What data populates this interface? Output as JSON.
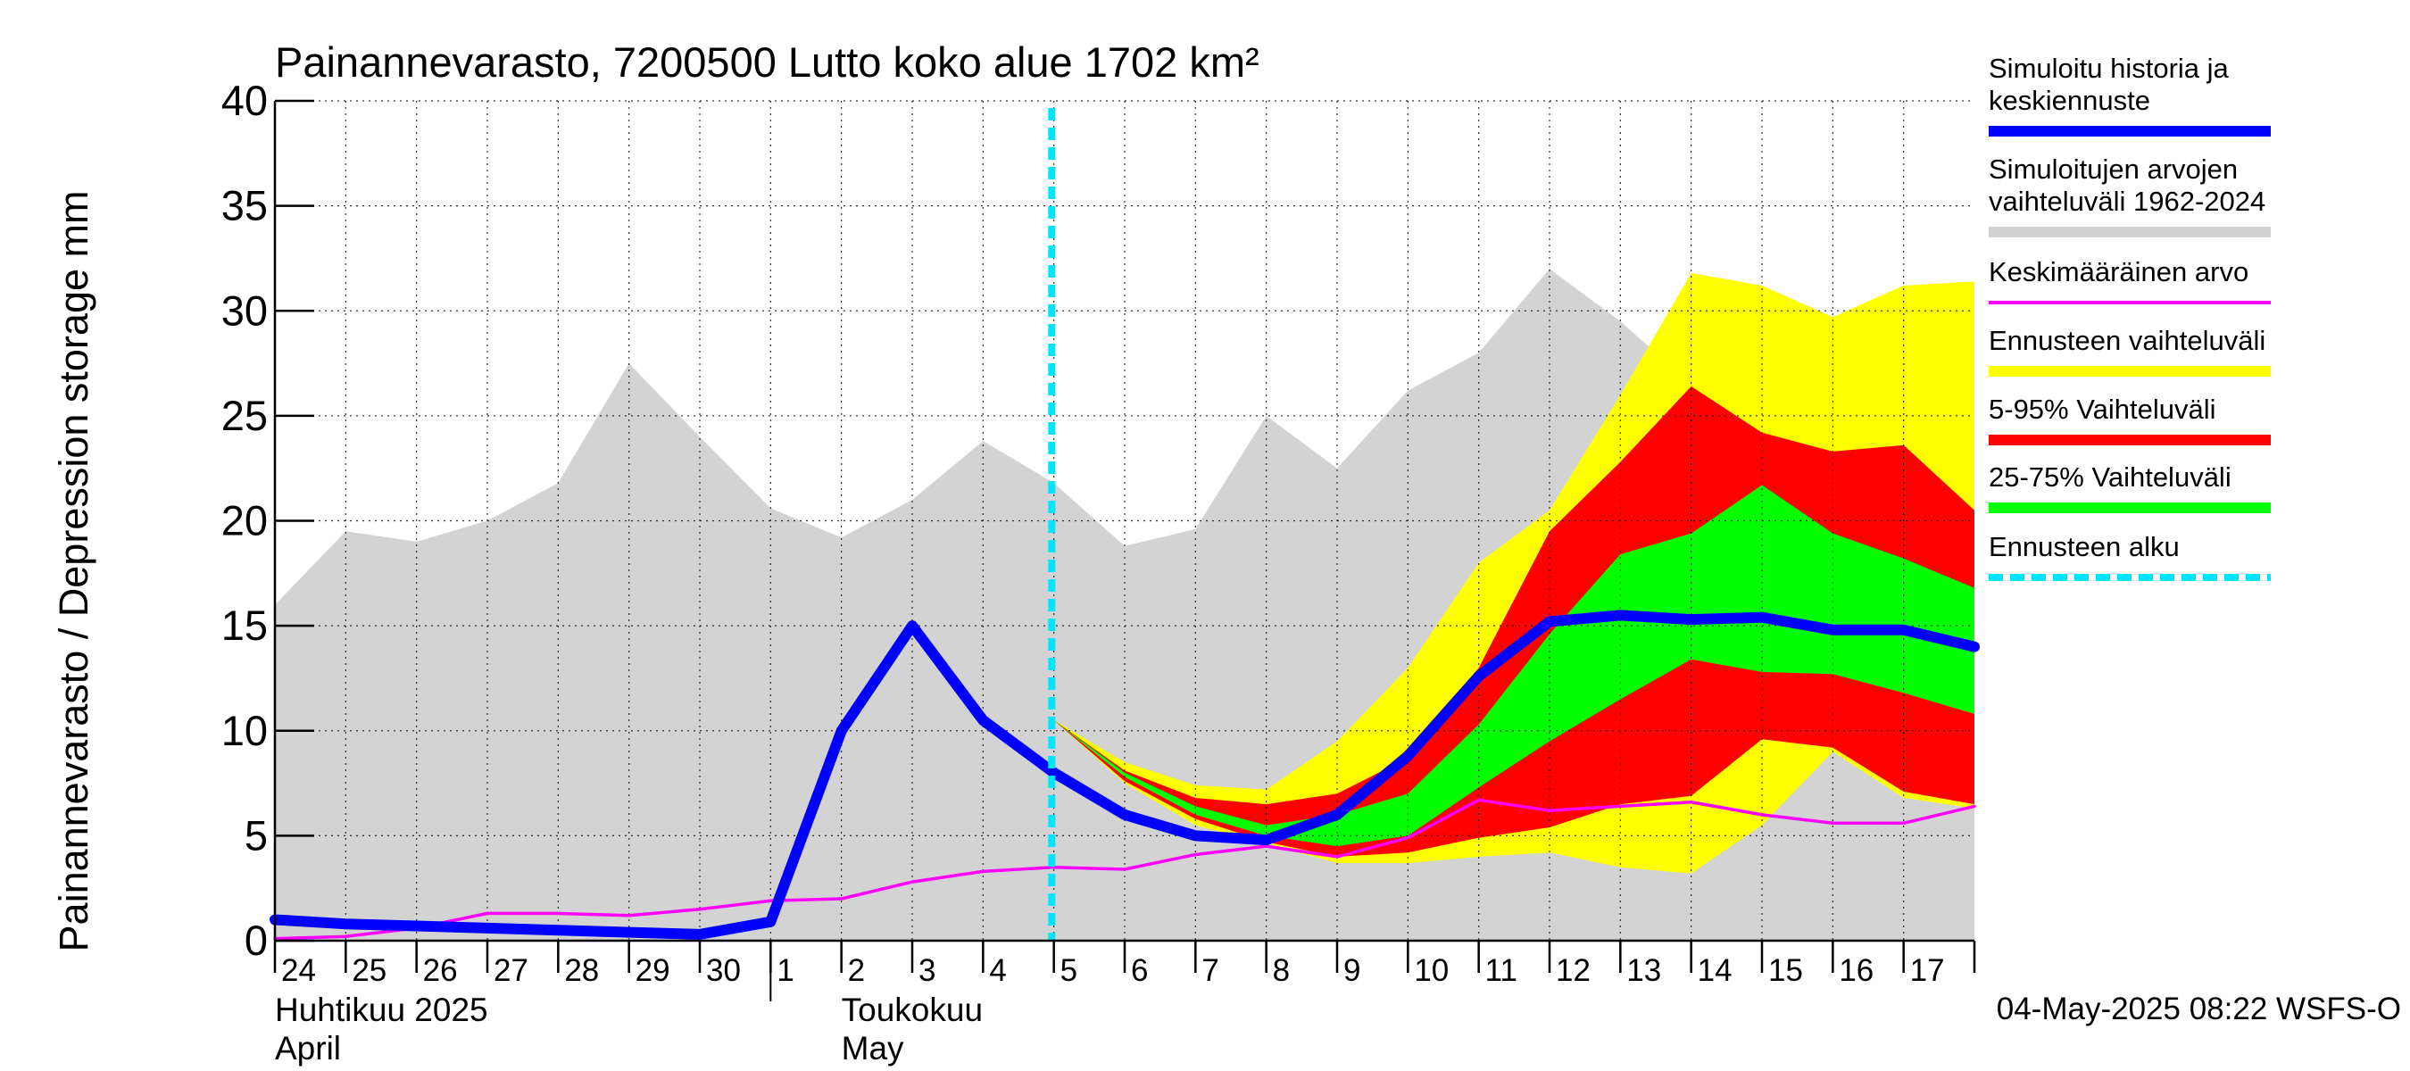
{
  "chart_data": {
    "type": "area",
    "title": "Painannevarasto, 7200500 Lutto koko alue 1702 km²",
    "ylabel": "Painannevarasto / Depression storage    mm",
    "ylim": [
      0,
      40
    ],
    "yticks": [
      0,
      5,
      10,
      15,
      20,
      25,
      30,
      35,
      40
    ],
    "grid": true,
    "legend_position": "right",
    "x_labels": [
      "24",
      "25",
      "26",
      "27",
      "28",
      "29",
      "30",
      "1",
      "2",
      "3",
      "4",
      "5",
      "6",
      "7",
      "8",
      "9",
      "10",
      "11",
      "12",
      "13",
      "14",
      "15",
      "16",
      "17"
    ],
    "month_labels": [
      {
        "fi": "Huhtikuu  2025",
        "en": "April"
      },
      {
        "fi": "Toukokuu",
        "en": "May"
      }
    ],
    "forecast_start_day": 10.97,
    "footer": "04-May-2025 08:22 WSFS-O",
    "legend": [
      {
        "label": "Simuloitu historia ja\nkeskiennuste",
        "color": "#0000ff",
        "style": "thick"
      },
      {
        "label": "Simuloitujen arvojen\nvaihteluväli 1962-2024",
        "color": "#d0d0d0",
        "style": "band"
      },
      {
        "label": "Keskimääräinen arvo",
        "color": "#ff00ff",
        "style": "thin"
      },
      {
        "label": "Ennusteen vaihteluväli",
        "color": "#ffff00",
        "style": "band"
      },
      {
        "label": "5-95% Vaihteluväli",
        "color": "#ff0000",
        "style": "band"
      },
      {
        "label": "25-75% Vaihteluväli",
        "color": "#00ff00",
        "style": "band"
      },
      {
        "label": "Ennusteen alku",
        "color": "#00e5ff",
        "style": "dashed"
      }
    ],
    "series": [
      {
        "name": "Simuloitujen arvojen vaihteluväli 1962-2024",
        "kind": "band",
        "color": "#d3d3d3",
        "x": [
          0,
          1,
          2,
          3,
          4,
          5,
          6,
          7,
          8,
          9,
          10,
          11,
          12,
          13,
          14,
          15,
          16,
          17,
          18,
          19,
          20,
          21,
          22,
          23,
          24
        ],
        "lower": [
          0,
          0,
          0,
          0,
          0,
          0,
          0,
          0,
          0,
          0,
          0,
          0,
          0,
          0,
          0,
          0,
          0,
          0,
          0,
          0,
          0,
          0,
          0,
          0,
          0
        ],
        "upper": [
          16,
          19.5,
          19,
          20,
          21.8,
          27.5,
          24,
          20.6,
          19.2,
          21,
          23.8,
          21.8,
          18.8,
          19.6,
          25,
          22.5,
          26.2,
          28,
          32,
          29.5,
          26.5,
          24,
          26.8,
          24.8,
          26.5
        ]
      },
      {
        "name": "Ennusteen vaihteluväli",
        "kind": "band",
        "color": "#ffff00",
        "x": [
          11,
          12,
          13,
          14,
          15,
          16,
          17,
          18,
          19,
          20,
          21,
          22,
          23,
          24
        ],
        "lower": [
          10.5,
          7.5,
          5.5,
          4.6,
          3.7,
          3.7,
          4,
          4.2,
          3.5,
          3.2,
          5.5,
          9,
          6.8,
          6.3
        ],
        "upper": [
          10.5,
          8.5,
          7.4,
          7.2,
          9.5,
          13,
          18,
          20.5,
          26,
          31.8,
          31.2,
          29.7,
          31.2,
          31.4
        ]
      },
      {
        "name": "5-95% Vaihteluväli",
        "kind": "band",
        "color": "#ff0000",
        "x": [
          11,
          12,
          13,
          14,
          15,
          16,
          17,
          18,
          19,
          20,
          21,
          22,
          23,
          24
        ],
        "lower": [
          10.5,
          7.6,
          5.8,
          4.7,
          4,
          4.2,
          4.9,
          5.4,
          6.5,
          6.9,
          9.6,
          9.2,
          7.1,
          6.5
        ],
        "upper": [
          10.5,
          8.1,
          6.8,
          6.5,
          7,
          8.7,
          13,
          19.5,
          22.8,
          26.4,
          24.2,
          23.3,
          23.6,
          20.5
        ]
      },
      {
        "name": "25-75% Vaihteluväli",
        "kind": "band",
        "color": "#00ff00",
        "x": [
          11,
          12,
          13,
          14,
          15,
          16,
          17,
          18,
          19,
          20,
          21,
          22,
          23,
          24
        ],
        "lower": [
          10.5,
          7.8,
          6,
          5,
          4.5,
          5,
          7.3,
          9.5,
          11.5,
          13.4,
          12.8,
          12.7,
          11.8,
          10.8
        ],
        "upper": [
          10.5,
          8,
          6.4,
          5.5,
          6,
          7,
          10.3,
          14.6,
          18.4,
          19.4,
          21.7,
          19.4,
          18.2,
          16.8
        ]
      },
      {
        "name": "Keskimääräinen arvo",
        "kind": "line",
        "color": "#ff00ff",
        "x": [
          0,
          1,
          2,
          3,
          4,
          5,
          6,
          7,
          8,
          9,
          10,
          11,
          12,
          13,
          14,
          15,
          16,
          17,
          18,
          19,
          20,
          21,
          22,
          23,
          24
        ],
        "values": [
          0.1,
          0.2,
          0.6,
          1.3,
          1.3,
          1.2,
          1.5,
          1.9,
          2,
          2.8,
          3.3,
          3.5,
          3.4,
          4.1,
          4.5,
          4,
          4.9,
          6.7,
          6.2,
          6.4,
          6.6,
          6,
          5.6,
          5.6,
          6.4
        ]
      },
      {
        "name": "Simuloitu historia ja keskiennuste",
        "kind": "line",
        "color": "#0000ff",
        "x": [
          0,
          1,
          2,
          3,
          4,
          5,
          6,
          7,
          8,
          9,
          10,
          11,
          12,
          13,
          14,
          15,
          16,
          17,
          18,
          19,
          20,
          21,
          22,
          23,
          24
        ],
        "values": [
          1,
          0.8,
          0.7,
          0.6,
          0.5,
          0.4,
          0.3,
          0.9,
          10,
          15,
          10.5,
          8,
          6,
          5,
          4.8,
          6,
          8.8,
          12.6,
          15.2,
          15.5,
          15.3,
          15.4,
          14.8,
          14.8,
          14
        ]
      }
    ]
  }
}
